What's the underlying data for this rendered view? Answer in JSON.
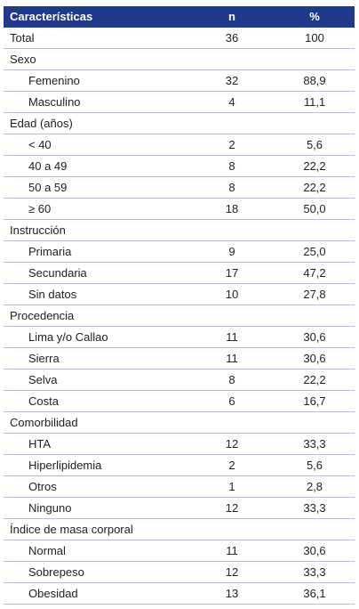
{
  "table": {
    "headers": {
      "characteristic": "Características",
      "n": "n",
      "percent": "%"
    },
    "rows": [
      {
        "type": "main",
        "label": "Total",
        "n": "36",
        "pct": "100"
      },
      {
        "type": "section",
        "label": "Sexo",
        "n": "",
        "pct": ""
      },
      {
        "type": "sub",
        "label": "Femenino",
        "n": "32",
        "pct": "88,9"
      },
      {
        "type": "sub",
        "label": "Masculino",
        "n": "4",
        "pct": "11,1"
      },
      {
        "type": "section",
        "label": "Edad (años)",
        "n": "",
        "pct": ""
      },
      {
        "type": "sub",
        "label": "< 40",
        "n": "2",
        "pct": "5,6"
      },
      {
        "type": "sub",
        "label": "40 a 49",
        "n": "8",
        "pct": "22,2"
      },
      {
        "type": "sub",
        "label": "50 a 59",
        "n": "8",
        "pct": "22,2"
      },
      {
        "type": "sub",
        "label": "≥ 60",
        "n": "18",
        "pct": "50,0"
      },
      {
        "type": "section",
        "label": "Instrucción",
        "n": "",
        "pct": ""
      },
      {
        "type": "sub",
        "label": "Primaria",
        "n": "9",
        "pct": "25,0"
      },
      {
        "type": "sub",
        "label": "Secundaria",
        "n": "17",
        "pct": "47,2"
      },
      {
        "type": "sub",
        "label": "Sin datos",
        "n": "10",
        "pct": "27,8"
      },
      {
        "type": "section",
        "label": "Procedencia",
        "n": "",
        "pct": ""
      },
      {
        "type": "sub",
        "label": "Lima y/o Callao",
        "n": "11",
        "pct": "30,6"
      },
      {
        "type": "sub",
        "label": "Sierra",
        "n": "11",
        "pct": "30,6"
      },
      {
        "type": "sub",
        "label": "Selva",
        "n": "8",
        "pct": "22,2"
      },
      {
        "type": "sub",
        "label": "Costa",
        "n": "6",
        "pct": "16,7"
      },
      {
        "type": "section",
        "label": "Comorbilidad",
        "n": "",
        "pct": ""
      },
      {
        "type": "sub",
        "label": "HTA",
        "n": "12",
        "pct": "33,3"
      },
      {
        "type": "sub",
        "label": "Hiperlipidemia",
        "n": "2",
        "pct": "5,6"
      },
      {
        "type": "sub",
        "label": "Otros",
        "n": "1",
        "pct": "2,8"
      },
      {
        "type": "sub",
        "label": "Ninguno",
        "n": "12",
        "pct": "33,3"
      },
      {
        "type": "section",
        "label": "Índice de masa corporal",
        "n": "",
        "pct": ""
      },
      {
        "type": "sub",
        "label": "Normal",
        "n": "11",
        "pct": "30,6"
      },
      {
        "type": "sub",
        "label": "Sobrepeso",
        "n": "12",
        "pct": "33,3"
      },
      {
        "type": "sub",
        "label": "Obesidad",
        "n": "13",
        "pct": "36,1"
      }
    ]
  },
  "colors": {
    "header_bg": "#1f3a8a",
    "header_text": "#ffffff",
    "rule": "#b9c3d3"
  }
}
